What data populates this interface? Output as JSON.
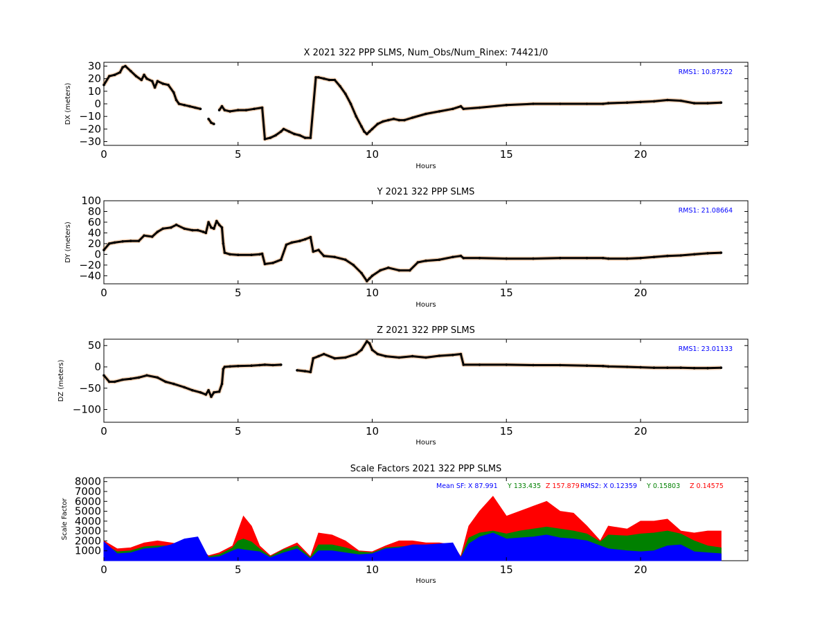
{
  "colors": {
    "position_trace": "#000000",
    "position_outlier": "#e08030",
    "rms_text": "#0000ff",
    "sf_x": "#0000ff",
    "sf_y": "#008000",
    "sf_z": "#ff0000"
  },
  "chart_data": [
    {
      "type": "scatter",
      "title": "X 2021 322 PPP  SLMS, Num_Obs/Num_Rinex: 74421/0",
      "xlabel": "Hours",
      "ylabel": "DX (meters)",
      "xlim": [
        0,
        24
      ],
      "ylim": [
        -33,
        33
      ],
      "xticks": [
        0,
        5,
        10,
        15,
        20
      ],
      "yticks": [
        -30,
        -20,
        -10,
        0,
        10,
        20,
        30
      ],
      "annotation": "RMS1: 10.87522",
      "grid": false,
      "series": [
        {
          "x": [
            0.0,
            0.2,
            0.4,
            0.6,
            0.7,
            0.8,
            1.0,
            1.2,
            1.4,
            1.5,
            1.6,
            1.8,
            1.9,
            2.0,
            2.2,
            2.4,
            2.6,
            2.7,
            2.8,
            3.0,
            3.2,
            3.4,
            3.6,
            3.8,
            3.9,
            4.0,
            4.1,
            4.2,
            4.3,
            4.4,
            4.5,
            4.7,
            5.0,
            5.3,
            5.6,
            5.9,
            6.0,
            6.2,
            6.4,
            6.6,
            6.7,
            6.9,
            7.1,
            7.3,
            7.5,
            7.7,
            7.9,
            8.0,
            8.2,
            8.4,
            8.6,
            8.8,
            9.0,
            9.2,
            9.4,
            9.6,
            9.7,
            9.8,
            9.9,
            10.0,
            10.2,
            10.4,
            10.6,
            10.8,
            11.0,
            11.2,
            11.5,
            12.0,
            12.5,
            13.0,
            13.3,
            13.4,
            14.0,
            15.0,
            16.0,
            17.0,
            18.0,
            18.6,
            18.8,
            19.5,
            20.0,
            20.5,
            21.0,
            21.5,
            22.0,
            22.5,
            23.0
          ],
          "y": [
            15,
            22,
            23,
            25,
            29,
            30,
            26,
            22,
            19,
            23,
            20,
            18,
            13,
            18,
            16,
            15,
            9,
            3,
            0,
            -1,
            -2,
            -3,
            -4,
            null,
            -12,
            -15,
            -16,
            null,
            -5,
            -2,
            -5,
            -6,
            -5,
            -5,
            -4,
            -3,
            -28,
            -27,
            -25,
            -22,
            -20,
            -22,
            -24,
            -25,
            -27,
            -27,
            21,
            21,
            20,
            19,
            19,
            14,
            8,
            0,
            -10,
            -18,
            -22,
            -24,
            -22,
            -20,
            -16,
            -14,
            -13,
            -12,
            -13,
            -13,
            -11,
            -8,
            -6,
            -4,
            -2,
            -4,
            -3,
            -1,
            0,
            0,
            0,
            0,
            0.5,
            1,
            1.5,
            2,
            3,
            2.5,
            0.5,
            0.5,
            1
          ]
        }
      ]
    },
    {
      "type": "scatter",
      "title": "Y 2021 322 PPP  SLMS",
      "xlabel": "Hours",
      "ylabel": "DY (meters)",
      "xlim": [
        0,
        24
      ],
      "ylim": [
        -55,
        100
      ],
      "xticks": [
        0,
        5,
        10,
        15,
        20
      ],
      "yticks": [
        -40,
        -20,
        0,
        20,
        40,
        60,
        80,
        100
      ],
      "annotation": "RMS1: 21.08664",
      "grid": false,
      "series": [
        {
          "x": [
            0.0,
            0.2,
            0.4,
            0.7,
            1.0,
            1.3,
            1.5,
            1.8,
            2.0,
            2.2,
            2.5,
            2.7,
            3.0,
            3.3,
            3.5,
            3.7,
            3.8,
            3.9,
            4.0,
            4.1,
            4.2,
            4.3,
            4.4,
            4.45,
            4.5,
            4.7,
            5.0,
            5.5,
            5.8,
            5.9,
            6.0,
            6.3,
            6.6,
            6.8,
            7.0,
            7.3,
            7.5,
            7.7,
            7.8,
            8.0,
            8.2,
            8.6,
            9.0,
            9.3,
            9.6,
            9.8,
            9.9,
            10.0,
            10.3,
            10.6,
            11.0,
            11.4,
            11.7,
            12.0,
            12.5,
            13.0,
            13.3,
            13.4,
            14.0,
            15.0,
            16.0,
            17.0,
            18.0,
            18.6,
            18.8,
            19.5,
            20.0,
            20.5,
            21.0,
            21.5,
            22.0,
            22.5,
            23.0
          ],
          "y": [
            8,
            20,
            22,
            24,
            25,
            25,
            35,
            33,
            42,
            48,
            50,
            55,
            48,
            45,
            45,
            42,
            40,
            60,
            50,
            48,
            62,
            55,
            50,
            20,
            3,
            0,
            -1,
            -1,
            0,
            1,
            -18,
            -16,
            -10,
            18,
            22,
            25,
            28,
            32,
            5,
            8,
            -3,
            -5,
            -10,
            -20,
            -35,
            -50,
            -45,
            -40,
            -30,
            -25,
            -30,
            -30,
            -15,
            -12,
            -10,
            -5,
            -3,
            -7,
            -7,
            -8,
            -8,
            -7,
            -7,
            -7,
            -8,
            -8,
            -7,
            -5,
            -3,
            -2,
            0,
            2,
            3
          ]
        }
      ]
    },
    {
      "type": "scatter",
      "title": "Z 2021 322 PPP  SLMS",
      "xlabel": "Hours",
      "ylabel": "DZ (meters)",
      "xlim": [
        0,
        24
      ],
      "ylim": [
        -130,
        65
      ],
      "xticks": [
        0,
        5,
        10,
        15,
        20
      ],
      "yticks": [
        -100,
        -50,
        0,
        50
      ],
      "annotation": "RMS1: 23.01133",
      "grid": false,
      "series": [
        {
          "x": [
            0.0,
            0.2,
            0.4,
            0.7,
            1.0,
            1.3,
            1.6,
            2.0,
            2.3,
            2.6,
            3.0,
            3.3,
            3.6,
            3.8,
            3.9,
            4.0,
            4.1,
            4.3,
            4.4,
            4.45,
            4.5,
            4.7,
            5.0,
            5.5,
            5.8,
            6.0,
            6.3,
            6.6,
            6.8,
            7.2,
            7.5,
            7.7,
            7.8,
            8.0,
            8.2,
            8.6,
            9.0,
            9.4,
            9.6,
            9.8,
            9.9,
            10.0,
            10.2,
            10.5,
            11.0,
            11.5,
            12.0,
            12.5,
            13.0,
            13.3,
            13.4,
            14.0,
            15.0,
            16.0,
            17.0,
            18.0,
            18.6,
            18.8,
            19.5,
            20.0,
            20.5,
            21.0,
            21.5,
            22.0,
            22.5,
            23.0
          ],
          "y": [
            -20,
            -35,
            -35,
            -30,
            -28,
            -25,
            -20,
            -25,
            -35,
            -40,
            -48,
            -55,
            -60,
            -65,
            -55,
            -70,
            -60,
            -58,
            -40,
            -5,
            0,
            1,
            2,
            3,
            4,
            5,
            4,
            5,
            null,
            -8,
            -10,
            -12,
            20,
            25,
            30,
            20,
            22,
            30,
            40,
            60,
            55,
            40,
            30,
            25,
            22,
            25,
            22,
            26,
            28,
            30,
            5,
            5,
            5,
            4,
            4,
            3,
            2,
            1,
            0,
            -1,
            -2,
            -2,
            -2,
            -3,
            -3,
            -2
          ]
        }
      ]
    },
    {
      "type": "area",
      "title": "Scale Factors 2021 322 PPP  SLMS",
      "xlabel": "Hours",
      "ylabel": "Scale Factor",
      "xlim": [
        0,
        24
      ],
      "ylim": [
        0,
        8400
      ],
      "xticks": [
        0,
        5,
        10,
        15,
        20
      ],
      "yticks": [
        1000,
        2000,
        3000,
        4000,
        5000,
        6000,
        7000,
        8000
      ],
      "annotation": {
        "mean_x": "Mean SF: X  87.991",
        "mean_y": "Y 133.435",
        "mean_z": "Z 157.879",
        "rms_x": "RMS2: X  0.12359",
        "rms_y": "Y  0.15803",
        "rms_z": "Z  0.14575"
      },
      "grid": false,
      "x": [
        0.0,
        0.5,
        1.0,
        1.5,
        2.0,
        2.5,
        3.0,
        3.5,
        3.9,
        4.3,
        4.8,
        5.0,
        5.2,
        5.5,
        5.8,
        6.2,
        6.7,
        7.2,
        7.7,
        8.0,
        8.5,
        9.0,
        9.5,
        10.0,
        10.5,
        11.0,
        11.5,
        12.0,
        12.5,
        13.0,
        13.3,
        13.6,
        14.0,
        14.5,
        15.0,
        15.5,
        16.0,
        16.5,
        17.0,
        17.5,
        18.0,
        18.5,
        18.8,
        19.5,
        20.0,
        20.5,
        21.0,
        21.5,
        22.0,
        22.5,
        23.0
      ],
      "series": [
        {
          "name": "Z",
          "values": [
            2000,
            1200,
            1300,
            1800,
            2000,
            1800,
            1600,
            1400,
            500,
            800,
            1500,
            3000,
            4500,
            3500,
            1500,
            500,
            1200,
            1800,
            400,
            2800,
            2600,
            2000,
            1000,
            900,
            1500,
            2000,
            2000,
            1800,
            1800,
            1600,
            400,
            3500,
            5000,
            6500,
            4500,
            5000,
            5500,
            6000,
            5000,
            4800,
            3500,
            2000,
            3500,
            3200,
            4000,
            4000,
            4200,
            3000,
            2800,
            3000,
            3000
          ]
        },
        {
          "name": "Y",
          "values": [
            1600,
            900,
            1000,
            1400,
            1500,
            1500,
            1300,
            1300,
            400,
            600,
            1300,
            2000,
            2200,
            1900,
            1200,
            400,
            1100,
            1500,
            300,
            1600,
            1600,
            1300,
            900,
            800,
            1300,
            1400,
            1500,
            1400,
            1300,
            1200,
            300,
            2300,
            2800,
            3000,
            2700,
            3000,
            3200,
            3400,
            3200,
            3000,
            2700,
            1900,
            2600,
            2500,
            2700,
            2800,
            3000,
            2700,
            2000,
            1500,
            1300
          ]
        },
        {
          "name": "X",
          "values": [
            1900,
            700,
            800,
            1200,
            1300,
            1600,
            2200,
            2400,
            300,
            400,
            1000,
            1200,
            1100,
            1000,
            900,
            300,
            800,
            1200,
            200,
            1000,
            1000,
            800,
            600,
            700,
            1200,
            1300,
            1600,
            1600,
            1700,
            1800,
            300,
            1700,
            2400,
            2800,
            2200,
            2300,
            2400,
            2600,
            2300,
            2200,
            2000,
            1500,
            1200,
            1000,
            900,
            1000,
            1500,
            1600,
            900,
            800,
            700
          ]
        }
      ]
    }
  ]
}
